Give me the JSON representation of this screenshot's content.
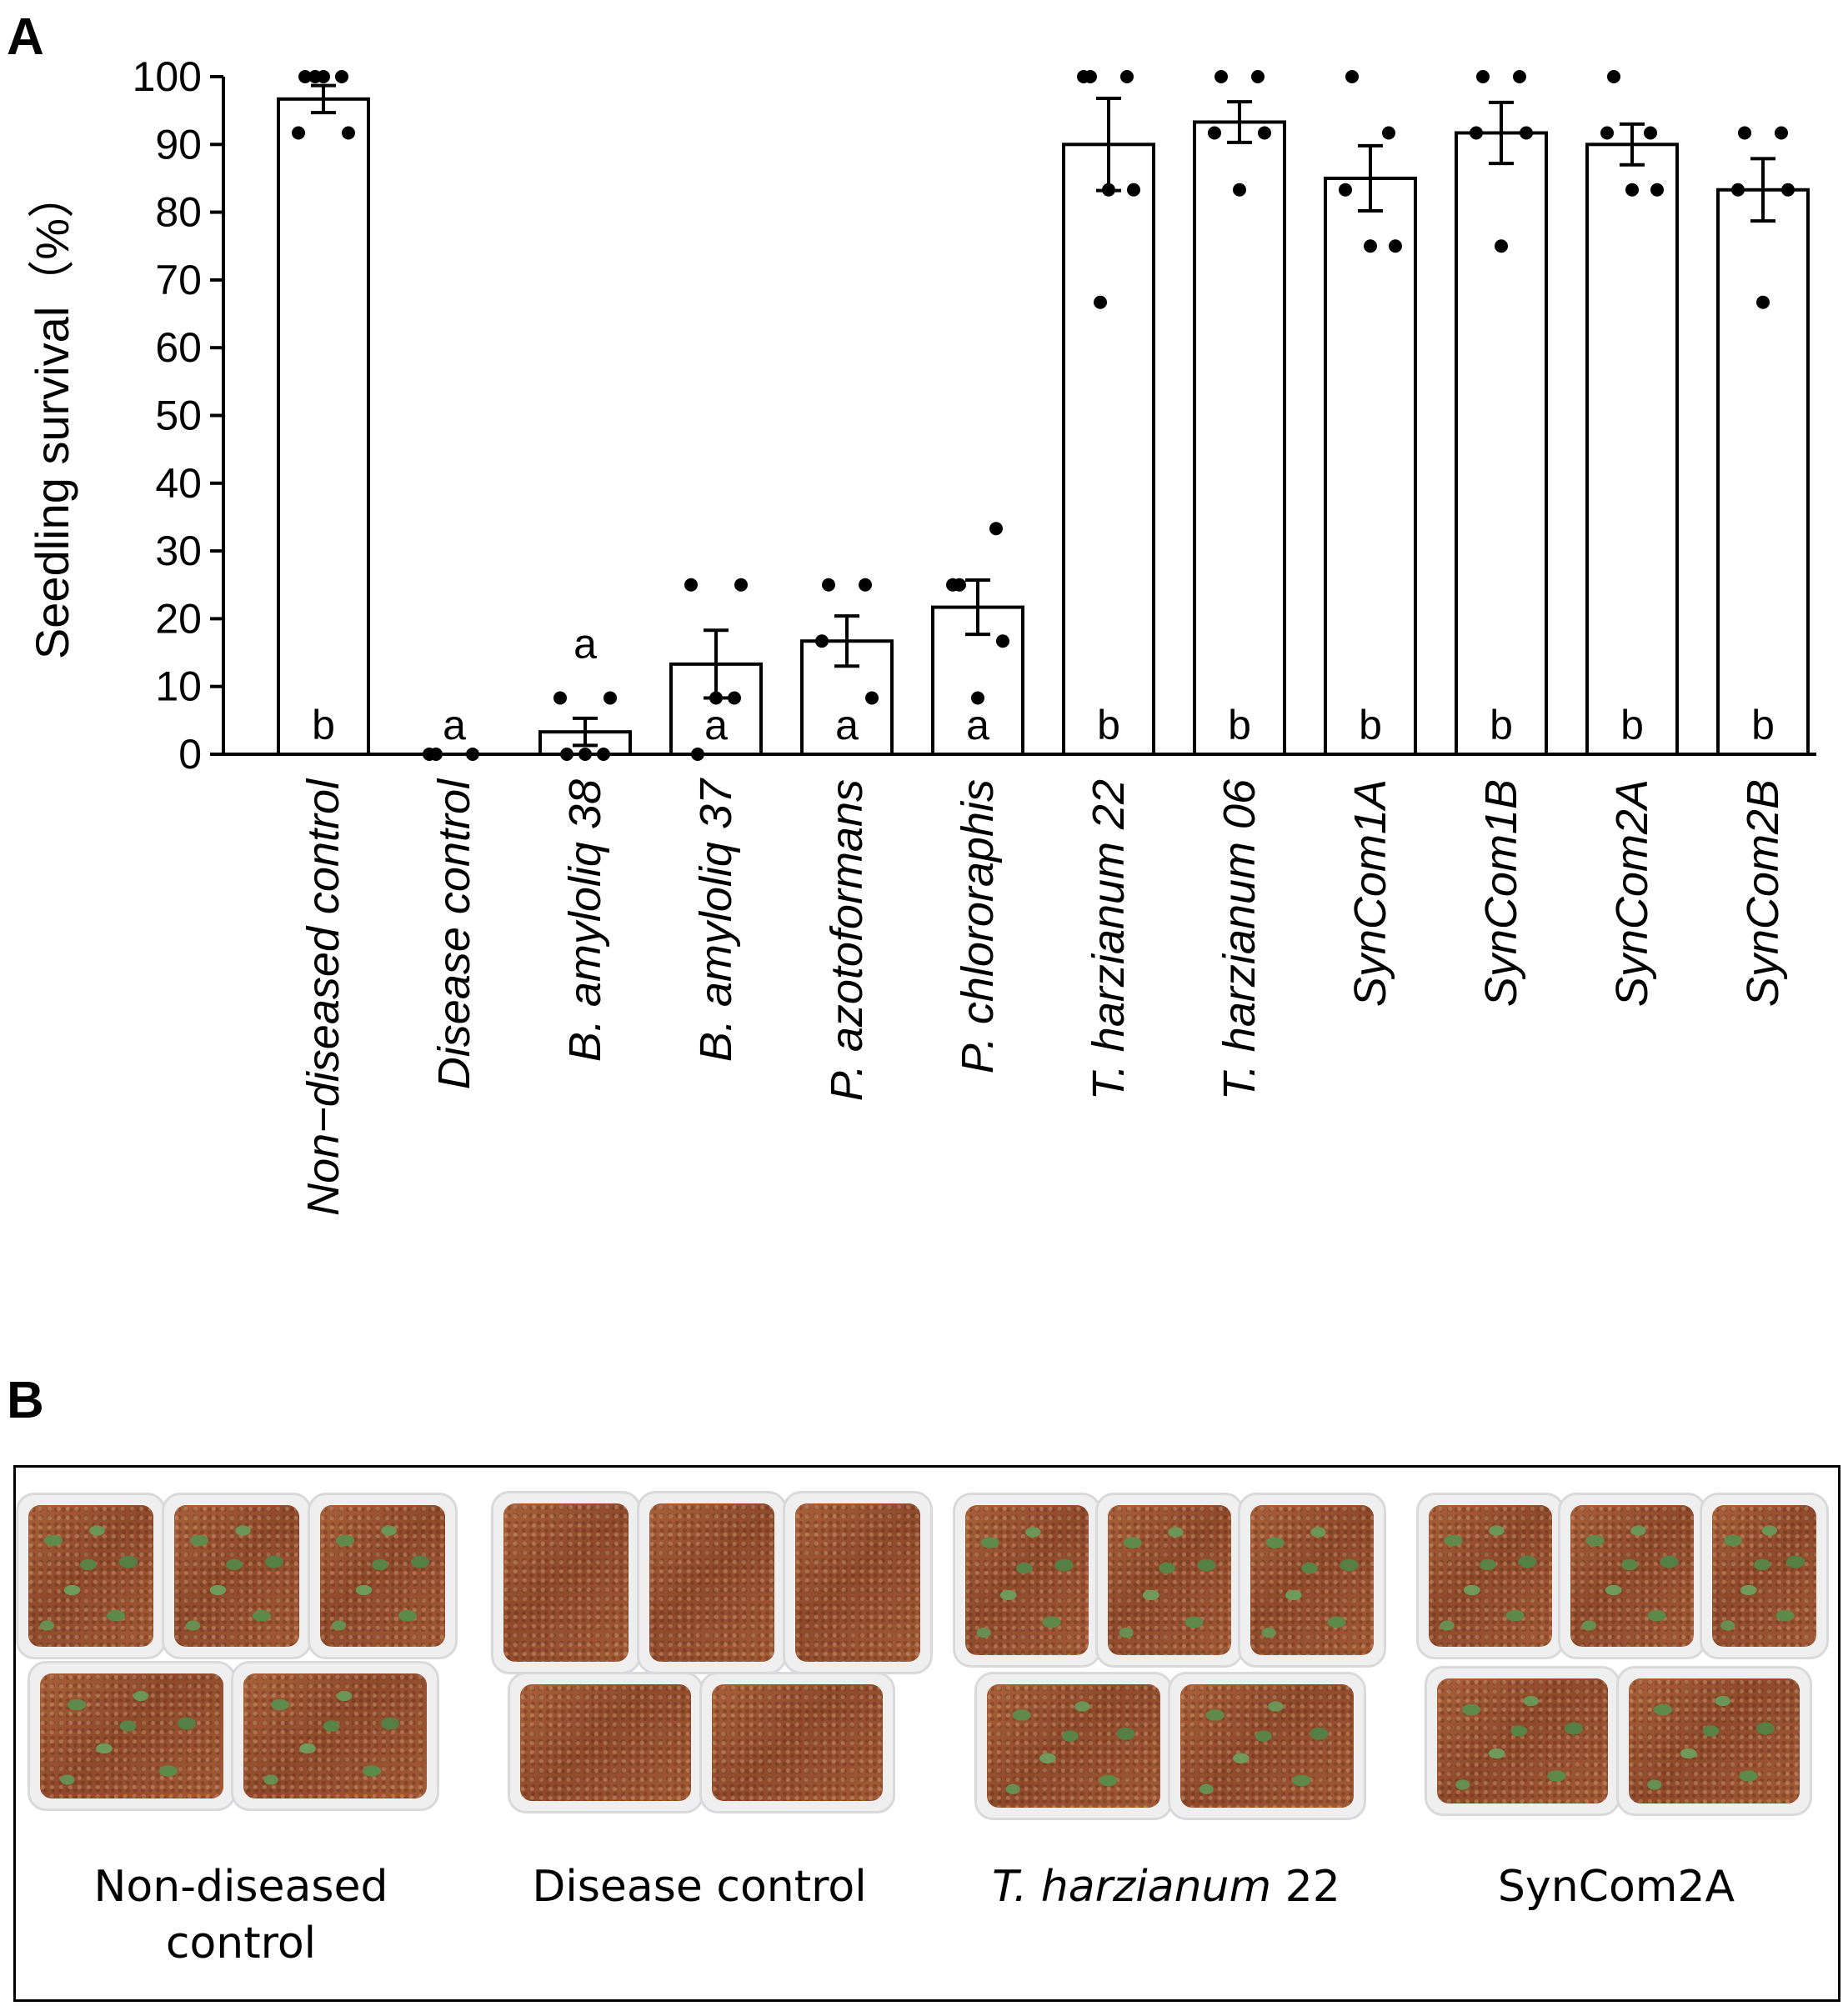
{
  "panel_a_label": "A",
  "panel_b_label": "B",
  "chart_data": {
    "type": "bar",
    "title": "",
    "xlabel": "",
    "ylabel": "Seedling survival（%）",
    "ylim": [
      0,
      100
    ],
    "yticks": [
      0,
      10,
      20,
      30,
      40,
      50,
      60,
      70,
      80,
      90,
      100
    ],
    "grid": false,
    "categories": [
      "Non−diseased control",
      "Disease control",
      "B. amyloliq 38",
      "B. amyloliq 37",
      "P. azotoformans",
      "P. chlororaphis",
      "T. harzianum 22",
      "T. harzianum 06",
      "SynCom1A",
      "SynCom1B",
      "SynCom2A",
      "SynCom2B"
    ],
    "values": [
      96.7,
      0,
      3.3,
      13.3,
      16.7,
      21.7,
      90.0,
      93.3,
      85.0,
      91.7,
      90.0,
      83.3
    ],
    "error": [
      2.0,
      0,
      2.0,
      5.0,
      3.7,
      4.0,
      6.8,
      3.0,
      4.8,
      4.5,
      3.0,
      4.6
    ],
    "letters": [
      "b",
      "a",
      "a",
      "a",
      "a",
      "a",
      "b",
      "b",
      "b",
      "b",
      "b",
      "b"
    ],
    "points": [
      [
        100,
        100,
        91.7,
        91.7,
        100,
        100
      ],
      [
        0,
        0,
        0
      ],
      [
        0,
        0,
        8.3,
        8.3,
        0
      ],
      [
        0,
        8.3,
        25,
        25,
        8.3
      ],
      [
        25,
        25,
        16.7,
        8.3
      ],
      [
        25,
        33.3,
        25,
        16.7,
        8.3
      ],
      [
        100,
        100,
        100,
        83.3,
        83.3,
        66.7
      ],
      [
        100,
        100,
        91.7,
        91.7,
        83.3
      ],
      [
        100,
        91.7,
        83.3,
        75,
        75
      ],
      [
        100,
        100,
        91.7,
        91.7,
        75
      ],
      [
        100,
        91.7,
        91.7,
        83.3,
        83.3
      ],
      [
        91.7,
        91.7,
        83.3,
        83.3,
        66.7
      ]
    ]
  },
  "photo_groups": [
    {
      "caption_lines": [
        "Non-diseased",
        "control"
      ],
      "caption_italic": "",
      "caption_normal": "",
      "has_seedlings": true
    },
    {
      "caption_lines": [
        "Disease control"
      ],
      "caption_italic": "",
      "caption_normal": "",
      "has_seedlings": false
    },
    {
      "caption_lines": [],
      "caption_italic": "T. harzianum",
      "caption_normal": " 22",
      "has_seedlings": true
    },
    {
      "caption_lines": [
        "SynCom2A"
      ],
      "caption_italic": "",
      "caption_normal": "",
      "has_seedlings": true
    }
  ]
}
